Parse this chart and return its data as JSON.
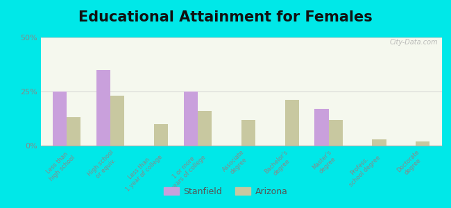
{
  "title": "Educational Attainment for Females",
  "categories": [
    "Less than\nhigh school",
    "High school\nor equiv.",
    "Less than\n1 year of college",
    "1 or more\nyears of college",
    "Associate\ndegree",
    "Bachelor's\ndegree",
    "Master's\ndegree",
    "Profess.\nschool degree",
    "Doctorate\ndegree"
  ],
  "stanfield": [
    25,
    35,
    0,
    25,
    0,
    0,
    17,
    0,
    0
  ],
  "arizona": [
    13,
    23,
    10,
    16,
    12,
    21,
    12,
    3,
    2
  ],
  "stanfield_color": "#c9a0dc",
  "arizona_color": "#c8c8a0",
  "background_outer": "#00e8e8",
  "ylim": [
    0,
    50
  ],
  "yticks": [
    0,
    25,
    50
  ],
  "ytick_labels": [
    "0%",
    "25%",
    "50%"
  ],
  "title_fontsize": 15,
  "watermark": "City-Data.com",
  "legend_stanfield": "Stanfield",
  "legend_arizona": "Arizona"
}
